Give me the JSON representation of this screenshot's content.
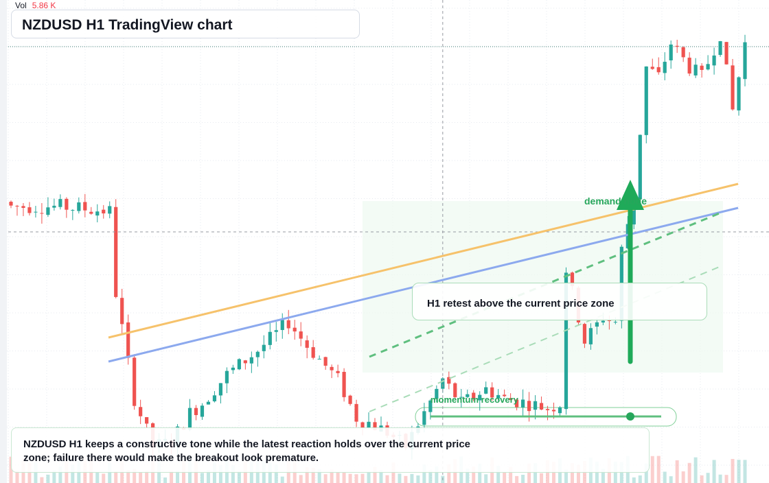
{
  "header": {
    "vol_label": "Vol",
    "vol_value": "5.86 K",
    "title": "NZDUSD H1 TradingView chart"
  },
  "annotations": {
    "retest": "H1 retest above the current price zone",
    "demand": "demand node",
    "momentum": "momentum recovery",
    "summary": "NZDUSD H1 keeps a constructive tone while the latest reaction holds over the current price zone; failure there would make the breakout look premature."
  },
  "colors": {
    "up": "#26a69a",
    "down": "#ef5350",
    "accent_green": "#1faa59",
    "trend_orange": "#f6c26b",
    "trend_blue": "#8ca9ee"
  },
  "chart_data": {
    "type": "candlestick",
    "symbol": "NZDUSD",
    "timeframe": "H1",
    "price_axis": "unlabeled",
    "x_index_range": [
      0,
      119
    ],
    "y_range_relative": [
      0,
      100
    ],
    "candles_count": 120,
    "crosshair": {
      "x_index": 70,
      "y_relative": 53
    },
    "trend_lines": [
      {
        "name": "",
        "color": "orange",
        "from": [
          16,
          31
        ],
        "to": [
          117,
          62
        ]
      },
      {
        "name": "",
        "color": "blue",
        "from": [
          16,
          24
        ],
        "to": [
          117,
          58
        ]
      }
    ]
  }
}
